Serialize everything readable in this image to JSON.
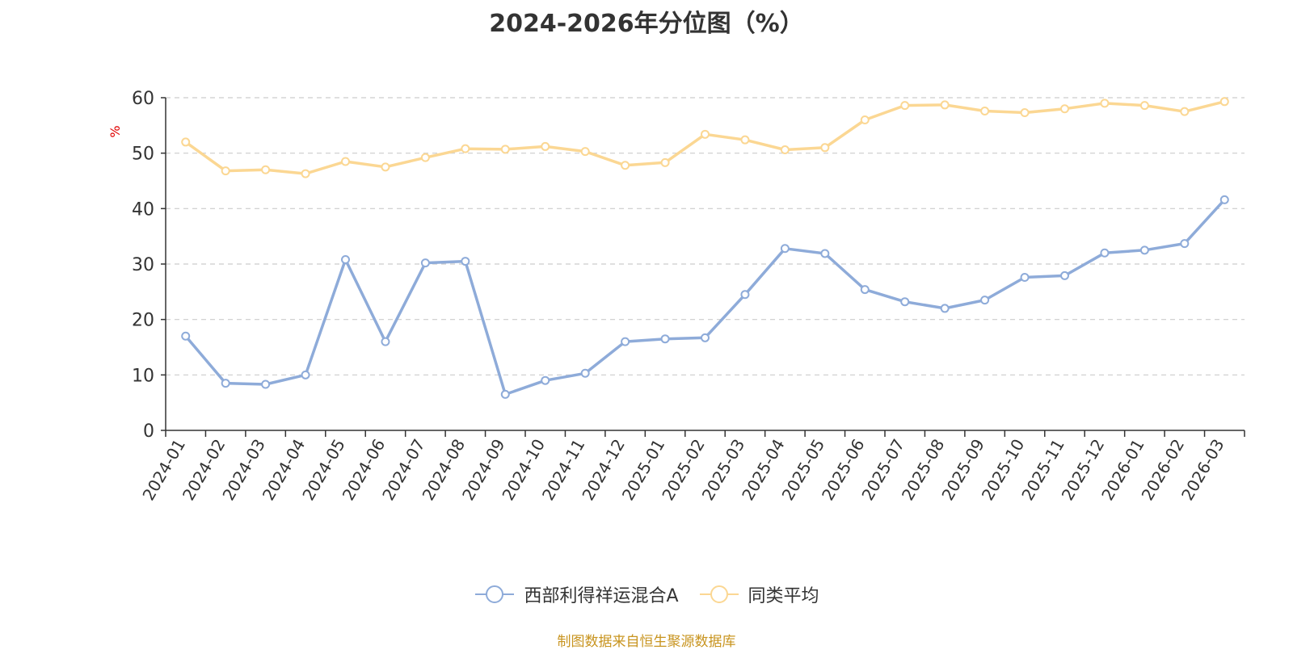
{
  "chart_data": {
    "type": "line",
    "title": "2024-2026年分位图（%）",
    "ylabel": "%",
    "xlabel": "",
    "ylim": [
      0,
      60
    ],
    "yticks": [
      0,
      10,
      20,
      30,
      40,
      50,
      60
    ],
    "grid": true,
    "legend_position": "bottom",
    "categories": [
      "2024-01",
      "2024-02",
      "2024-03",
      "2024-04",
      "2024-05",
      "2024-06",
      "2024-07",
      "2024-08",
      "2024-09",
      "2024-10",
      "2024-11",
      "2024-12",
      "2025-01",
      "2025-02",
      "2025-03",
      "2025-04",
      "2025-05",
      "2025-06",
      "2025-07",
      "2025-08",
      "2025-09",
      "2025-10",
      "2025-11",
      "2025-12",
      "2026-01",
      "2026-02",
      "2026-03"
    ],
    "series": [
      {
        "name": "西部利得祥运混合A",
        "color": "#8eabd9",
        "values": [
          17.0,
          8.5,
          8.3,
          10.0,
          30.8,
          16.0,
          30.2,
          30.5,
          6.5,
          9.0,
          10.3,
          16.0,
          16.5,
          16.7,
          24.5,
          32.8,
          31.9,
          25.4,
          23.2,
          22.0,
          23.5,
          27.6,
          27.9,
          32.0,
          32.5,
          33.7,
          41.6
        ]
      },
      {
        "name": "同类平均",
        "color": "#fbd793",
        "values": [
          52.0,
          46.8,
          47.0,
          46.3,
          48.5,
          47.5,
          49.2,
          50.8,
          50.7,
          51.2,
          50.3,
          47.8,
          48.3,
          53.4,
          52.4,
          50.6,
          51.0,
          56.0,
          58.6,
          58.7,
          57.6,
          57.3,
          58.0,
          59.0,
          58.6,
          57.5,
          59.3
        ]
      }
    ]
  },
  "footer": {
    "source": "制图数据来自恒生聚源数据库"
  }
}
